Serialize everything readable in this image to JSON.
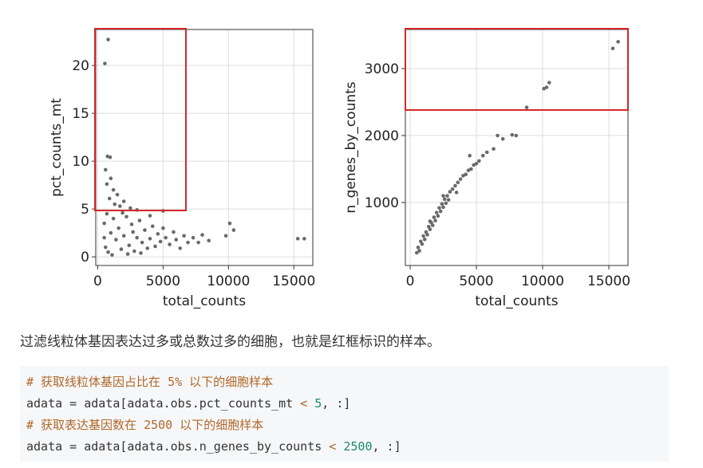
{
  "chart_data": [
    {
      "type": "scatter",
      "xlabel": "total_counts",
      "ylabel": "pct_counts_mt",
      "color": "#6a6a6a",
      "grid": true,
      "xlim": [
        -150,
        16450
      ],
      "ylim": [
        -0.9,
        23.75
      ],
      "xticks": [
        0,
        5000,
        10000,
        15000
      ],
      "yticks": [
        0,
        5,
        10,
        15,
        20
      ],
      "x": [
        800,
        550,
        750,
        950,
        600,
        1000,
        700,
        1200,
        1500,
        900,
        2000,
        1700,
        2500,
        3000,
        5000,
        4000,
        500,
        600,
        800,
        1000,
        1200,
        1400,
        1600,
        1800,
        2000,
        2200,
        2400,
        2600,
        2800,
        3000,
        3200,
        3400,
        3600,
        3800,
        4000,
        4200,
        4400,
        4600,
        4800,
        5000,
        5200,
        5500,
        5800,
        6000,
        6300,
        6600,
        6900,
        1100,
        2300,
        3300,
        500,
        700,
        1300,
        1900,
        2700,
        7300,
        7700,
        8000,
        8500,
        9800,
        10100,
        10400,
        15300,
        15800
      ],
      "y": [
        22.7,
        20.2,
        10.5,
        10.4,
        9.1,
        8.2,
        7.6,
        7.0,
        6.5,
        6.1,
        5.8,
        5.3,
        5.1,
        4.9,
        4.8,
        4.3,
        3.5,
        1.0,
        0.5,
        2.5,
        4.0,
        1.8,
        3.0,
        0.8,
        2.2,
        4.2,
        1.2,
        3.4,
        0.6,
        2.0,
        3.8,
        1.5,
        2.8,
        0.9,
        1.9,
        3.2,
        1.1,
        2.4,
        1.6,
        3.0,
        2.0,
        1.3,
        2.6,
        1.8,
        0.9,
        2.2,
        1.5,
        0.2,
        0.3,
        0.4,
        2.0,
        4.5,
        5.5,
        4.6,
        2.6,
        2.0,
        1.5,
        2.3,
        1.7,
        2.2,
        3.5,
        2.8,
        1.9,
        1.9
      ]
    },
    {
      "type": "scatter",
      "xlabel": "total_counts",
      "ylabel": "n_genes_by_counts",
      "color": "#6a6a6a",
      "grid": true,
      "xlim": [
        -361,
        16446
      ],
      "ylim": [
        60,
        3583
      ],
      "xticks": [
        0,
        5000,
        10000,
        15000
      ],
      "yticks": [
        1000,
        2000,
        3000
      ],
      "x": [
        500,
        600,
        700,
        800,
        900,
        1000,
        1100,
        1200,
        1300,
        1400,
        1500,
        1600,
        1700,
        1800,
        1900,
        2000,
        2100,
        2200,
        2300,
        2400,
        2500,
        2600,
        2700,
        2800,
        2900,
        3000,
        3200,
        3400,
        3600,
        3800,
        4000,
        4200,
        4400,
        4600,
        4800,
        5000,
        5200,
        5500,
        5800,
        4500,
        3500,
        2500,
        1500,
        6300,
        6600,
        7000,
        7700,
        8000,
        8800,
        10100,
        10300,
        10500,
        15300,
        15700
      ],
      "y": [
        250,
        330,
        280,
        420,
        380,
        500,
        450,
        560,
        520,
        640,
        600,
        700,
        660,
        780,
        730,
        850,
        800,
        920,
        870,
        980,
        930,
        1050,
        990,
        1100,
        1040,
        1160,
        1200,
        1250,
        1300,
        1350,
        1400,
        1420,
        1480,
        1500,
        1560,
        1580,
        1620,
        1700,
        1750,
        1700,
        1150,
        1100,
        720,
        1800,
        2000,
        1950,
        2010,
        2000,
        2420,
        2700,
        2720,
        2790,
        3300,
        3400
      ]
    }
  ],
  "text": {
    "caption": "过滤线粒体基因表达过多或总数过多的细胞，也就是红框标识的样本。"
  },
  "code": {
    "lines": [
      [
        "# 获取线粒体基因占比在 5% 以下的细胞样本"
      ],
      [
        "adata = adata[adata.obs.pct_counts_mt ",
        "<",
        " ",
        "5",
        ", :]"
      ],
      [
        "# 获取表达基因数在 2500 以下的细胞样本"
      ],
      [
        "adata = adata[adata.obs.n_genes_by_counts ",
        "<",
        " ",
        "2500",
        ", :]"
      ]
    ]
  }
}
